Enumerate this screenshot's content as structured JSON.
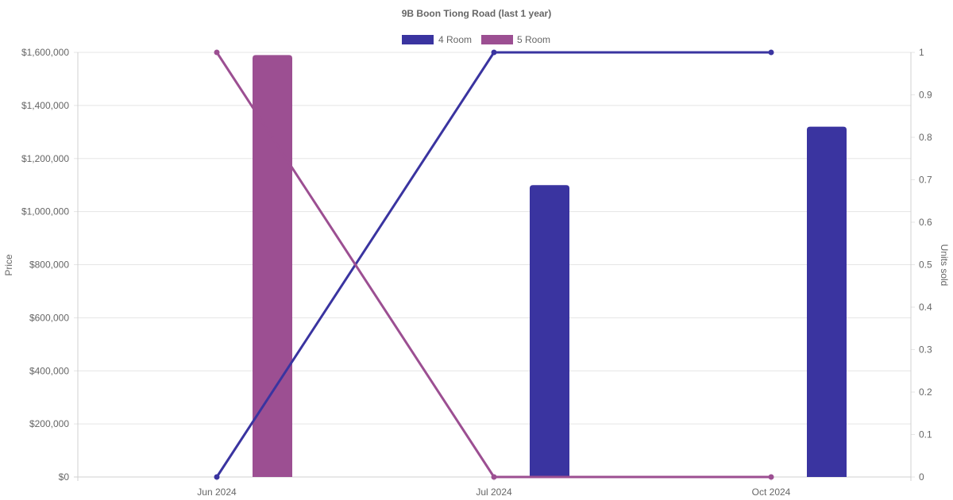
{
  "chart_data": {
    "type": "bar",
    "title": "9B Boon Tiong Road (last 1 year)",
    "categories": [
      "Jun 2024",
      "Jul 2024",
      "Oct 2024"
    ],
    "y_left": {
      "label": "Price",
      "ylim": [
        0,
        1600000
      ],
      "ticks": [
        0,
        200000,
        400000,
        600000,
        800000,
        1000000,
        1200000,
        1400000,
        1600000
      ],
      "tick_labels": [
        "$0",
        "$200,000",
        "$400,000",
        "$600,000",
        "$800,000",
        "$1,000,000",
        "$1,200,000",
        "$1,400,000",
        "$1,600,000"
      ]
    },
    "y_right": {
      "label": "Units sold",
      "ylim": [
        0,
        1
      ],
      "ticks": [
        0,
        0.1,
        0.2,
        0.3,
        0.4,
        0.5,
        0.6,
        0.7,
        0.8,
        0.9,
        1
      ],
      "tick_labels": [
        "0",
        "0.1",
        "0.2",
        "0.3",
        "0.4",
        "0.5",
        "0.6",
        "0.7",
        "0.8",
        "0.9",
        "1"
      ]
    },
    "series": [
      {
        "name": "4 Room",
        "color": "#3a34a0",
        "price": [
          null,
          1100000,
          1320000
        ],
        "units_sold": [
          0,
          1,
          1
        ]
      },
      {
        "name": "5 Room",
        "color": "#9c4f92",
        "price": [
          1590000,
          null,
          null
        ],
        "units_sold": [
          1,
          0,
          0
        ]
      }
    ],
    "legend_position": "top",
    "grid": true
  }
}
